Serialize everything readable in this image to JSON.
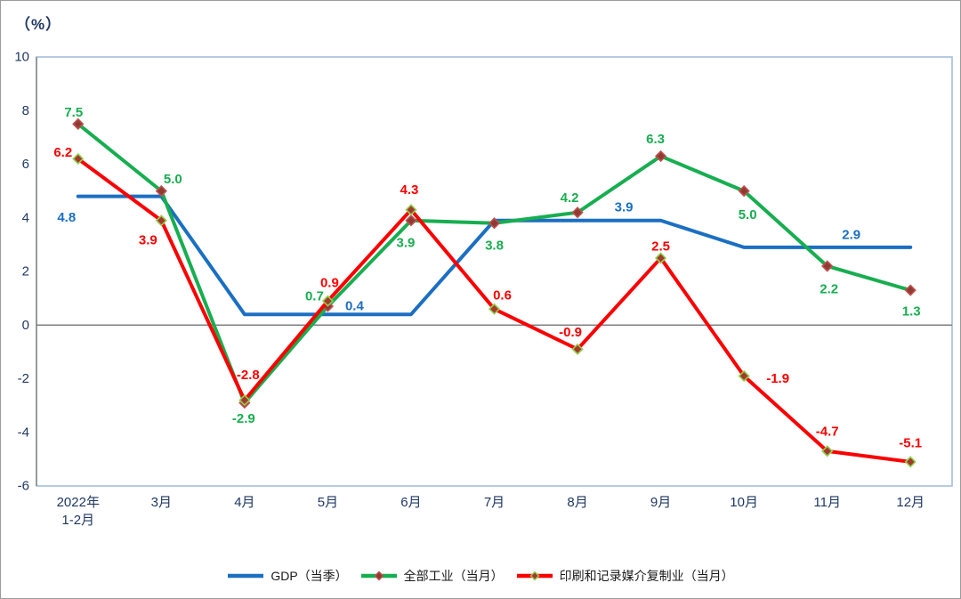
{
  "figure": {
    "axis_unit": "（%）"
  },
  "colors": {
    "axis_text": "#1f3864",
    "legend_text": "#1a1a1a",
    "plot_border": "#a3bedc",
    "axis_line": "#7f7f7f",
    "zero_line": "#7f7f7f",
    "outer_border": "#9b9b9b",
    "background": "#ffffff"
  },
  "chart_data": {
    "type": "line",
    "title": "",
    "ylabel_unit": "（%）",
    "categories": [
      "2022年\n1-2月",
      "3月",
      "4月",
      "5月",
      "6月",
      "7月",
      "8月",
      "9月",
      "10月",
      "11月",
      "12月"
    ],
    "ylim": [
      -6,
      10
    ],
    "ytick_step": 2,
    "grid": false,
    "zero_line": true,
    "legend_position": "bottom",
    "series": [
      {
        "slug": "gdp",
        "name": "GDP（当季）",
        "color": "#1b6fc2",
        "marker": false,
        "values": [
          4.8,
          4.8,
          0.4,
          0.4,
          0.4,
          3.9,
          3.9,
          3.9,
          2.9,
          2.9,
          2.9
        ],
        "label_offsets": [
          [
            -13,
            24
          ],
          null,
          null,
          [
            30,
            -9
          ],
          null,
          null,
          [
            52,
            -15
          ],
          null,
          null,
          [
            27,
            -14
          ],
          null
        ]
      },
      {
        "slug": "industry",
        "name": "全部工业（当月）",
        "color": "#17ae50",
        "marker": true,
        "marker_fill": "#8e3b33",
        "marker_stroke": "#c0504d",
        "values": [
          7.5,
          5.0,
          -2.9,
          0.7,
          3.9,
          3.8,
          4.2,
          6.3,
          5.0,
          2.2,
          1.3
        ],
        "label_offsets": [
          [
            -5,
            -13
          ],
          [
            13,
            -13
          ],
          [
            -1,
            18
          ],
          [
            -15,
            -11
          ],
          [
            -6,
            25
          ],
          [
            0,
            25
          ],
          [
            -9,
            -16
          ],
          [
            -6,
            -19
          ],
          [
            4,
            27
          ],
          [
            2,
            26
          ],
          [
            1,
            24
          ]
        ]
      },
      {
        "slug": "printing",
        "name": "印刷和记录媒介复制业（当月）",
        "color": "#fb0000",
        "marker": true,
        "marker_fill": "#a33a2e",
        "marker_stroke": "#92d050",
        "values": [
          6.2,
          3.9,
          -2.8,
          0.9,
          4.3,
          0.6,
          -0.9,
          2.5,
          -1.9,
          -4.7,
          -5.1
        ],
        "label_offsets": [
          [
            -17,
            -7
          ],
          [
            -15,
            22
          ],
          [
            4,
            -28
          ],
          [
            2,
            -20
          ],
          [
            -2,
            -22
          ],
          [
            9,
            -15
          ],
          [
            -8,
            -19
          ],
          [
            0,
            -13
          ],
          [
            38,
            3
          ],
          [
            0,
            -22
          ],
          [
            0,
            -21
          ]
        ]
      }
    ]
  }
}
